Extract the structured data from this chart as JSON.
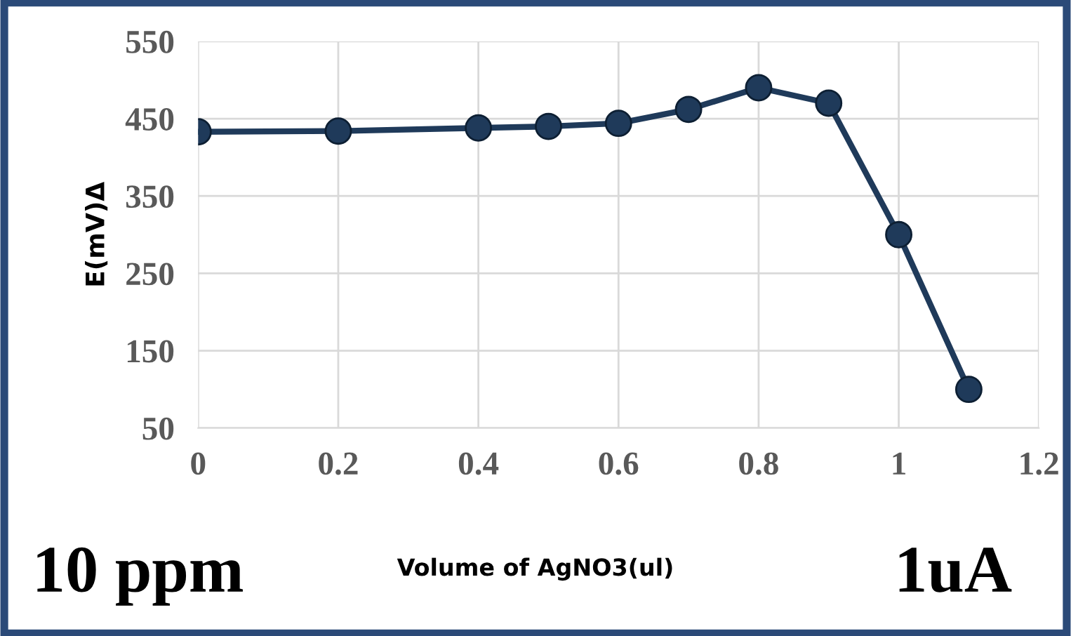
{
  "chart_data": {
    "type": "line",
    "xlabel": "Volume of AgNO3(ul)",
    "ylabel": "E(mV)Δ",
    "annotations": [
      "10 ppm",
      "1uA"
    ],
    "x": [
      0,
      0.2,
      0.4,
      0.5,
      0.6,
      0.7,
      0.8,
      0.9,
      1.0,
      1.1
    ],
    "series": [
      {
        "color": "#1f3a5a",
        "values": [
          433,
          434,
          438,
          440,
          444,
          462,
          490,
          470,
          300,
          100
        ]
      }
    ],
    "xlim": [
      0,
      1.2
    ],
    "xticks": [
      0,
      0.2,
      0.4,
      0.6,
      0.8,
      1,
      1.2
    ],
    "ylim": [
      50,
      550
    ],
    "yticks": [
      50,
      150,
      250,
      350,
      450,
      550
    ],
    "grid": true,
    "marker": "circle",
    "line_style": "solid",
    "legend": false
  }
}
